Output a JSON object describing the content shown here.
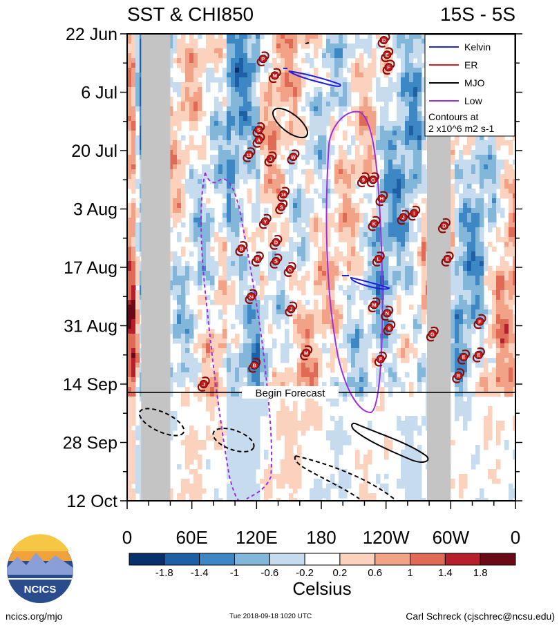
{
  "chart_data": {
    "type": "heatmap",
    "title_left": "SST & CHI850",
    "title_right": "15S - 5S",
    "x_tick_labels": [
      "0",
      "60E",
      "120E",
      "180",
      "120W",
      "60W",
      "0"
    ],
    "x_range": [
      0,
      360
    ],
    "y_tick_labels": [
      "22 Jun",
      "6 Jul",
      "20 Jul",
      "3 Aug",
      "17 Aug",
      "31 Aug",
      "14 Sep",
      "28 Sep",
      "12 Oct"
    ],
    "y_range_days": [
      0,
      112
    ],
    "forecast_label": "Begin Forecast",
    "forecast_day": 86,
    "legend": {
      "entries": [
        {
          "name": "Kelvin",
          "color": "#1f1fdf"
        },
        {
          "name": "ER",
          "color": "#e01818"
        },
        {
          "name": "MJO",
          "color": "#000000"
        },
        {
          "name": "Low",
          "color": "#9a2fe0"
        }
      ],
      "note_line1": "Contours at",
      "note_line2": "2 x10^6 m2 s-1"
    },
    "colorbar": {
      "label": "Celsius",
      "tick_labels": [
        "-1.8",
        "-1.4",
        "-1",
        "-0.6",
        "-0.2",
        "0.2",
        "0.6",
        "1",
        "1.4",
        "1.8"
      ],
      "colors": [
        "#08306b",
        "#1f5fa6",
        "#3d88c4",
        "#82b7d9",
        "#c6dcee",
        "#ffffff",
        "#fbd2bd",
        "#f2a287",
        "#df6a55",
        "#b81f2c",
        "#6b0a17"
      ]
    },
    "land_mask_lon": [
      [
        13,
        40
      ],
      [
        278,
        300
      ]
    ],
    "storms": [
      {
        "label": "D",
        "lon": 238,
        "day": 1.5
      },
      {
        "label": "E",
        "lon": 241,
        "day": 5
      },
      {
        "label": "F",
        "lon": 242.5,
        "day": 8
      },
      {
        "label": "P",
        "lon": 126,
        "day": 6
      },
      {
        "label": "M",
        "lon": 137,
        "day": 10
      },
      {
        "label": "S",
        "lon": 122,
        "day": 23
      },
      {
        "label": "A",
        "lon": 122,
        "day": 25.5
      },
      {
        "label": "13",
        "lon": 113,
        "day": 29
      },
      {
        "label": "J",
        "lon": 133,
        "day": 30
      },
      {
        "label": "W",
        "lon": 154,
        "day": 29.5
      },
      {
        "label": "9",
        "lon": 219,
        "day": 35
      },
      {
        "label": "G",
        "lon": 228,
        "day": 35
      },
      {
        "label": "16",
        "lon": 145,
        "day": 38.5
      },
      {
        "label": "H",
        "lon": 236,
        "day": 39.5
      },
      {
        "label": "S",
        "lon": 143,
        "day": 41.5
      },
      {
        "label": "J",
        "lon": 256,
        "day": 44
      },
      {
        "label": "I",
        "lon": 266,
        "day": 43
      },
      {
        "label": "Y",
        "lon": 128,
        "day": 45
      },
      {
        "label": "K",
        "lon": 229,
        "day": 45.5
      },
      {
        "label": "D",
        "lon": 294,
        "day": 46
      },
      {
        "label": "B",
        "lon": 106,
        "day": 51.5
      },
      {
        "label": "D",
        "lon": 138,
        "day": 50
      },
      {
        "label": "R",
        "lon": 121,
        "day": 54
      },
      {
        "label": "S",
        "lon": 138,
        "day": 54.5
      },
      {
        "label": "L",
        "lon": 233,
        "day": 54
      },
      {
        "label": "E",
        "lon": 297,
        "day": 54
      },
      {
        "label": "G",
        "lon": 151,
        "day": 56.5
      },
      {
        "label": "24",
        "lon": 115,
        "day": 63
      },
      {
        "label": "M",
        "lon": 229,
        "day": 65
      },
      {
        "label": "J",
        "lon": 152,
        "day": 66
      },
      {
        "label": "N",
        "lon": 241,
        "day": 67
      },
      {
        "label": "F",
        "lon": 327,
        "day": 69
      },
      {
        "label": "9",
        "lon": 243,
        "day": 70.5
      },
      {
        "label": "G",
        "lon": 283,
        "day": 72
      },
      {
        "label": "M",
        "lon": 166,
        "day": 76.5
      },
      {
        "label": "F",
        "lon": 235,
        "day": 78
      },
      {
        "label": "E",
        "lon": 326,
        "day": 77
      },
      {
        "label": "E",
        "lon": 312,
        "day": 77.5
      },
      {
        "label": "B",
        "lon": 118,
        "day": 79.5
      },
      {
        "label": "R",
        "lon": 307,
        "day": 82
      },
      {
        "label": "J",
        "lon": 71,
        "day": 84
      }
    ]
  },
  "logo": {
    "text": "NCICS"
  },
  "footer": {
    "left": "ncics.org/mjo",
    "middle": "Tue 2018-09-18 1020 UTC",
    "right": "Carl Schreck (cjschrec@ncsu.edu)"
  }
}
